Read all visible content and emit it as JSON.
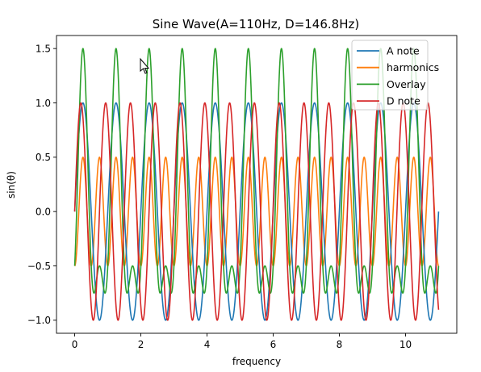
{
  "chart_data": {
    "type": "line",
    "title": "Sine Wave(A=110Hz, D=146.8Hz)",
    "xlabel": "frequency",
    "ylabel": "sin(θ)",
    "xlim": [
      -0.55,
      11.55
    ],
    "ylim": [
      -1.12,
      1.62
    ],
    "x_ticks": [
      0,
      2,
      4,
      6,
      8,
      10
    ],
    "x_tick_labels": [
      "0",
      "2",
      "4",
      "6",
      "8",
      "10"
    ],
    "y_ticks": [
      -1.0,
      -0.5,
      0.0,
      0.5,
      1.0,
      1.5
    ],
    "y_tick_labels": [
      "−1.0",
      "−0.5",
      "0.0",
      "0.5",
      "1.0",
      "1.5"
    ],
    "grid": false,
    "legend_position": "top-right",
    "x_range": [
      0,
      11
    ],
    "series": [
      {
        "name": "A note",
        "color": "#1f77b4",
        "formula": "sin(2π·x)",
        "amplitude": 1.0,
        "frequency": 1.0,
        "phase": 0.0,
        "offset": 0.0
      },
      {
        "name": "harmonics",
        "color": "#ff7f0e",
        "formula": "0.5·sin(2π·2x − π/2)",
        "amplitude": 0.5,
        "frequency": 2.0,
        "phase": -1.5708,
        "offset": 0.0
      },
      {
        "name": "Overlay",
        "color": "#2ca02c",
        "formula": "A note + harmonics",
        "components": [
          "A note",
          "harmonics"
        ]
      },
      {
        "name": "D note",
        "color": "#d62728",
        "formula": "sin(2π·1.3345x)",
        "amplitude": 1.0,
        "frequency": 1.3345,
        "phase": 0.0,
        "offset": 0.0
      }
    ]
  }
}
